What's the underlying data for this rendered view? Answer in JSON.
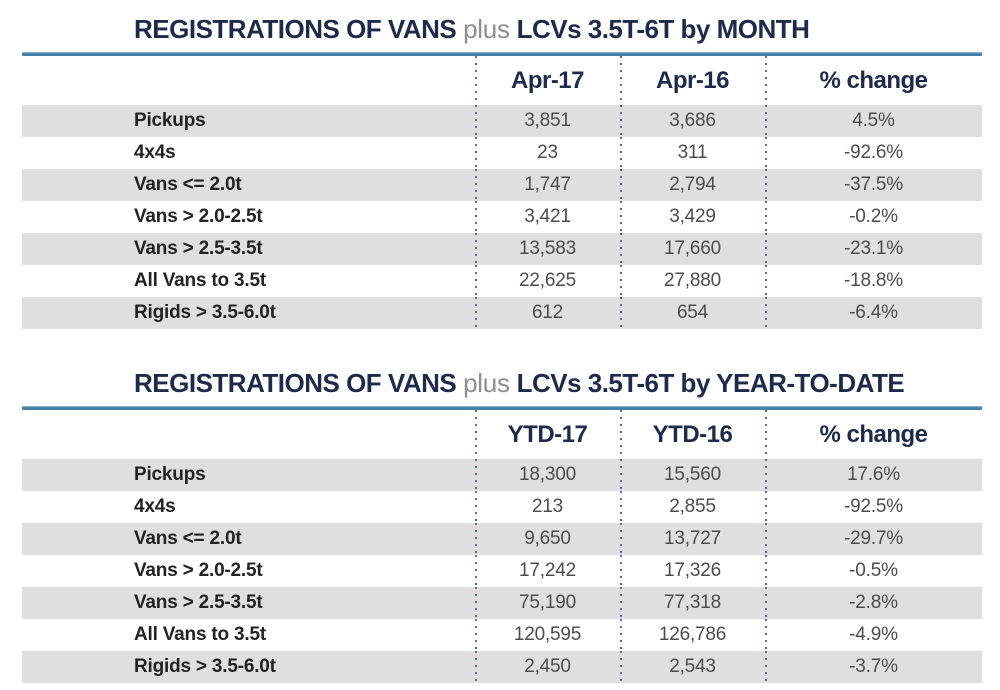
{
  "colors": {
    "title_navy": "#1d2a4a",
    "plus_gray": "#8e8e8e",
    "rule_blue": "#4886a9",
    "dotted_separator": "#4d7296",
    "row_shade_gray": "#dfdfdf",
    "label_text": "#222222",
    "value_text": "#4c4c4c"
  },
  "tables": [
    {
      "title_bold1": "REGISTRATIONS OF VANS",
      "title_plus": " plus ",
      "title_bold2": "LCVs 3.5T-6T by MONTH",
      "columns": [
        "",
        "Apr-17",
        "Apr-16",
        "% change"
      ],
      "rows": [
        {
          "label": "Pickups",
          "col1": "3,851",
          "col2": "3,686",
          "change": "4.5%"
        },
        {
          "label": "4x4s",
          "col1": "23",
          "col2": "311",
          "change": "-92.6%"
        },
        {
          "label": "Vans <= 2.0t",
          "col1": "1,747",
          "col2": "2,794",
          "change": "-37.5%"
        },
        {
          "label": "Vans > 2.0-2.5t",
          "col1": "3,421",
          "col2": "3,429",
          "change": "-0.2%"
        },
        {
          "label": "Vans > 2.5-3.5t",
          "col1": "13,583",
          "col2": "17,660",
          "change": "-23.1%"
        },
        {
          "label": "All Vans to 3.5t",
          "col1": "22,625",
          "col2": "27,880",
          "change": "-18.8%"
        },
        {
          "label": "Rigids > 3.5-6.0t",
          "col1": "612",
          "col2": "654",
          "change": "-6.4%"
        }
      ]
    },
    {
      "title_bold1": "REGISTRATIONS OF VANS",
      "title_plus": " plus ",
      "title_bold2": "LCVs 3.5T-6T by YEAR-TO-DATE",
      "columns": [
        "",
        "YTD-17",
        "YTD-16",
        "% change"
      ],
      "rows": [
        {
          "label": "Pickups",
          "col1": "18,300",
          "col2": "15,560",
          "change": "17.6%"
        },
        {
          "label": "4x4s",
          "col1": "213",
          "col2": "2,855",
          "change": "-92.5%"
        },
        {
          "label": "Vans <= 2.0t",
          "col1": "9,650",
          "col2": "13,727",
          "change": "-29.7%"
        },
        {
          "label": "Vans > 2.0-2.5t",
          "col1": "17,242",
          "col2": "17,326",
          "change": "-0.5%"
        },
        {
          "label": "Vans > 2.5-3.5t",
          "col1": "75,190",
          "col2": "77,318",
          "change": "-2.8%"
        },
        {
          "label": "All Vans to 3.5t",
          "col1": "120,595",
          "col2": "126,786",
          "change": "-4.9%"
        },
        {
          "label": "Rigids > 3.5-6.0t",
          "col1": "2,450",
          "col2": "2,543",
          "change": "-3.7%"
        }
      ]
    }
  ],
  "chart_data": [
    {
      "type": "table",
      "title": "REGISTRATIONS OF VANS plus LCVs 3.5T-6T by MONTH",
      "columns": [
        "Category",
        "Apr-17",
        "Apr-16",
        "% change"
      ],
      "rows": [
        [
          "Pickups",
          3851,
          3686,
          4.5
        ],
        [
          "4x4s",
          23,
          311,
          -92.6
        ],
        [
          "Vans <= 2.0t",
          1747,
          2794,
          -37.5
        ],
        [
          "Vans > 2.0-2.5t",
          3421,
          3429,
          -0.2
        ],
        [
          "Vans > 2.5-3.5t",
          13583,
          17660,
          -23.1
        ],
        [
          "All Vans to 3.5t",
          22625,
          27880,
          -18.8
        ],
        [
          "Rigids > 3.5-6.0t",
          612,
          654,
          -6.4
        ]
      ]
    },
    {
      "type": "table",
      "title": "REGISTRATIONS OF VANS plus LCVs 3.5T-6T by YEAR-TO-DATE",
      "columns": [
        "Category",
        "YTD-17",
        "YTD-16",
        "% change"
      ],
      "rows": [
        [
          "Pickups",
          18300,
          15560,
          17.6
        ],
        [
          "4x4s",
          213,
          2855,
          -92.5
        ],
        [
          "Vans <= 2.0t",
          9650,
          13727,
          -29.7
        ],
        [
          "Vans > 2.0-2.5t",
          17242,
          17326,
          -0.5
        ],
        [
          "Vans > 2.5-3.5t",
          75190,
          77318,
          -2.8
        ],
        [
          "All Vans to 3.5t",
          120595,
          126786,
          -4.9
        ],
        [
          "Rigids > 3.5-6.0t",
          2450,
          2543,
          -3.7
        ]
      ]
    }
  ]
}
